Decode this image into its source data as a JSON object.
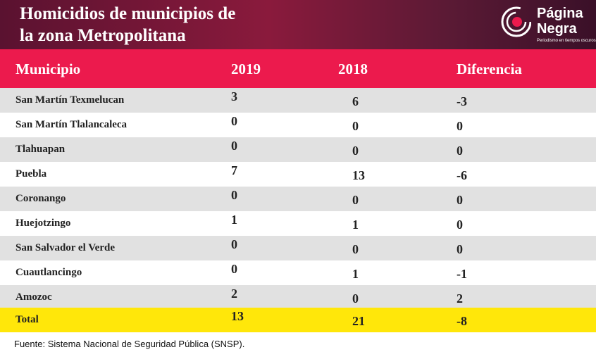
{
  "header": {
    "title_lines": [
      "Homicidios de municipios de",
      "la zona Metropolitana"
    ],
    "logo": {
      "name_lines": [
        "Página",
        "Negra"
      ],
      "tagline": "Periodismo en tiempos oscuros"
    }
  },
  "table": {
    "columns": [
      "Municipio",
      "2019",
      "2018",
      "Diferencia"
    ],
    "rows": [
      [
        "San Martín Texmelucan",
        3,
        6,
        -3
      ],
      [
        "San Martín Tlalancaleca",
        0,
        0,
        0
      ],
      [
        "Tlahuapan",
        0,
        0,
        0
      ],
      [
        "Puebla",
        7,
        13,
        -6
      ],
      [
        "Coronango",
        0,
        0,
        0
      ],
      [
        "Huejotzingo",
        1,
        1,
        0
      ],
      [
        "San Salvador el Verde",
        0,
        0,
        0
      ],
      [
        "Cuautlancingo",
        0,
        1,
        -1
      ],
      [
        "Amozoc",
        2,
        0,
        2
      ]
    ],
    "total": [
      "Total",
      13,
      21,
      -8
    ]
  },
  "footer": {
    "source": "Fuente: Sistema Nacional de Seguridad Pública (SNSP)."
  }
}
